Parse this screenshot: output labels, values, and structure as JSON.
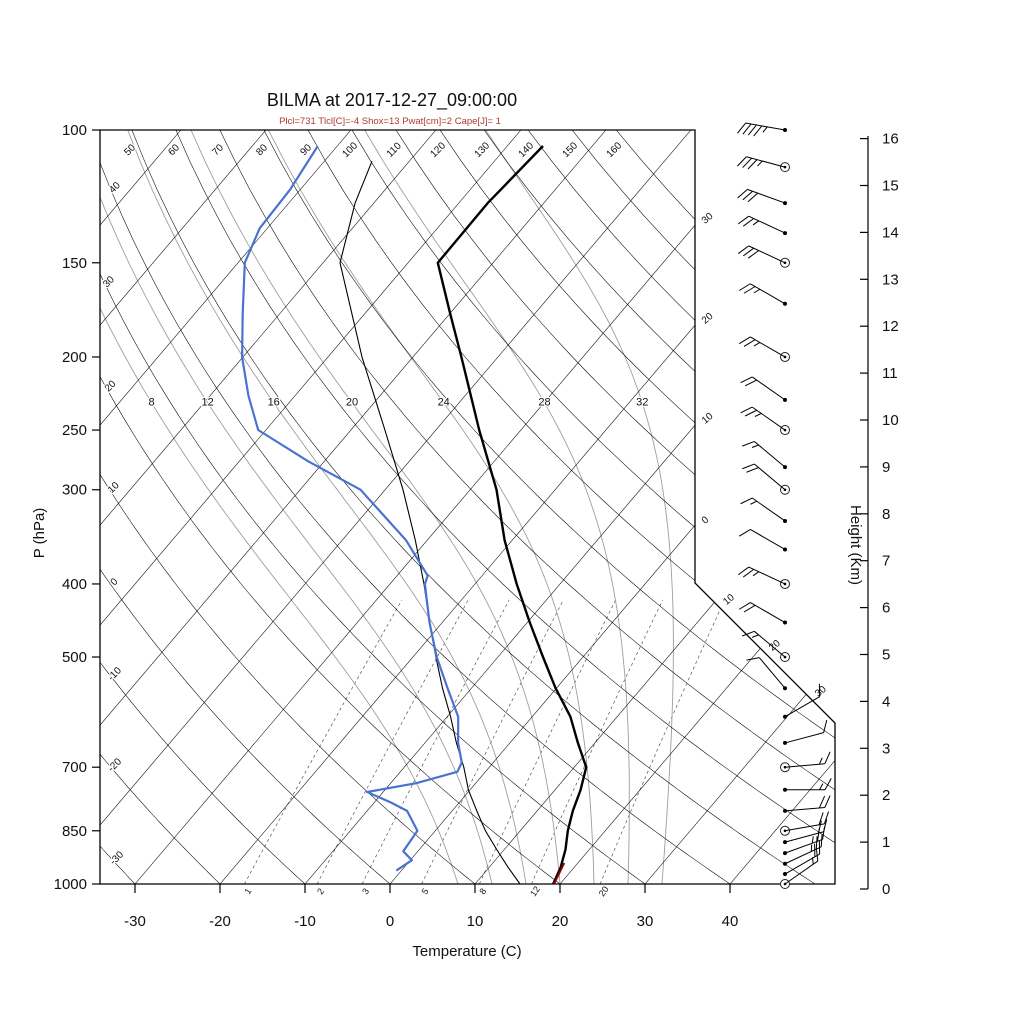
{
  "header": {
    "title": "BILMA at 2017-12-27_09:00:00",
    "params": "Plcl=731 Tlcl[C]=-4 Shox=13 Pwat[cm]=2 Cape[J]= 1"
  },
  "axes": {
    "pressure_label": "P (hPa)",
    "temperature_label": "Temperature (C)",
    "height_label": "Height (Km)"
  },
  "chart_data": {
    "type": "skewt_log_p_sounding",
    "station": "BILMA",
    "datetime": "2017-12-27_09:00:00",
    "params": {
      "Plcl_hPa": 731,
      "Tlcl_C": -4,
      "Showalter": 13,
      "Pwat_cm": 2,
      "Cape_J": 1
    },
    "pressure_ticks": [
      100,
      150,
      200,
      250,
      300,
      400,
      500,
      700,
      850,
      1000
    ],
    "temperature_ticks": [
      -30,
      -20,
      -10,
      0,
      10,
      20,
      30,
      40
    ],
    "height_ticks_km": [
      0,
      1,
      2,
      3,
      4,
      5,
      6,
      7,
      8,
      9,
      10,
      11,
      12,
      13,
      14,
      15,
      16
    ],
    "isotherms_c": {
      "start": -100,
      "end": 40,
      "step": 10
    },
    "dry_adiabats_c": {
      "start": -30,
      "end": 160,
      "step": 10
    },
    "dry_adiabat_top_labels": [
      50,
      60,
      70,
      80,
      90,
      100,
      110,
      120,
      130,
      140,
      150,
      160
    ],
    "dry_adiabat_left_labels": [
      40,
      30,
      20,
      10,
      0,
      -10,
      -20,
      -30
    ],
    "moist_adiabats_c": [
      8,
      12,
      16,
      20,
      24,
      28,
      32
    ],
    "mixing_ratio_g_kg": [
      1,
      2,
      3,
      5,
      8,
      12,
      20
    ],
    "isotherm_edge_labels_upper": [
      {
        "t": -30,
        "text": "30"
      },
      {
        "t": -20,
        "text": "20"
      },
      {
        "t": -10,
        "text": "10"
      },
      {
        "t": 0,
        "text": "0"
      }
    ],
    "isotherm_edge_labels_lower": [
      {
        "t": 10,
        "text": "10"
      },
      {
        "t": 20,
        "text": "20"
      },
      {
        "t": 30,
        "text": "30"
      }
    ],
    "temperature_profile": [
      [
        1000,
        19.2
      ],
      [
        950,
        18.4
      ],
      [
        900,
        17.2
      ],
      [
        850,
        15.6
      ],
      [
        800,
        14.2
      ],
      [
        750,
        13.0
      ],
      [
        700,
        11.4
      ],
      [
        650,
        8.0
      ],
      [
        600,
        4.5
      ],
      [
        550,
        -0.1
      ],
      [
        500,
        -4.7
      ],
      [
        450,
        -9.7
      ],
      [
        400,
        -15.1
      ],
      [
        350,
        -20.9
      ],
      [
        300,
        -26.9
      ],
      [
        250,
        -34.9
      ],
      [
        200,
        -44.3
      ],
      [
        175,
        -50.0
      ],
      [
        150,
        -56.5
      ],
      [
        125,
        -56.6
      ],
      [
        105,
        -55.8
      ]
    ],
    "dewpoint_profile": [
      [
        960,
        -0.6
      ],
      [
        930,
        0.2
      ],
      [
        905,
        -1.7
      ],
      [
        850,
        -2.1
      ],
      [
        800,
        -5.3
      ],
      [
        780,
        -8.0
      ],
      [
        755,
        -11.9
      ],
      [
        735,
        -7.0
      ],
      [
        710,
        -3.3
      ],
      [
        690,
        -3.7
      ],
      [
        650,
        -6.1
      ],
      [
        600,
        -8.7
      ],
      [
        550,
        -12.8
      ],
      [
        500,
        -17.2
      ],
      [
        450,
        -21.5
      ],
      [
        400,
        -25.9
      ],
      [
        390,
        -26.4
      ],
      [
        350,
        -32.5
      ],
      [
        300,
        -42.9
      ],
      [
        275,
        -51.9
      ],
      [
        250,
        -60.9
      ],
      [
        225,
        -65.5
      ],
      [
        200,
        -70.1
      ],
      [
        175,
        -74.4
      ],
      [
        150,
        -79.2
      ],
      [
        135,
        -80.9
      ],
      [
        120,
        -81.2
      ],
      [
        105,
        -82.3
      ]
    ],
    "parcel_profile": [
      [
        1000,
        15.3
      ],
      [
        950,
        12.2
      ],
      [
        900,
        9.1
      ],
      [
        850,
        5.9
      ],
      [
        800,
        2.9
      ],
      [
        750,
        -0.2
      ],
      [
        700,
        -3.0
      ],
      [
        650,
        -6.3
      ],
      [
        600,
        -9.6
      ],
      [
        550,
        -13.4
      ],
      [
        500,
        -17.3
      ],
      [
        450,
        -21.5
      ],
      [
        400,
        -26.0
      ],
      [
        350,
        -31.4
      ],
      [
        300,
        -37.9
      ],
      [
        250,
        -46.0
      ],
      [
        200,
        -56.0
      ],
      [
        150,
        -68.0
      ],
      [
        125,
        -72.2
      ],
      [
        110,
        -74.4
      ]
    ],
    "parcel_surface_segment": [
      [
        1000,
        19.3
      ],
      [
        938,
        18.4
      ]
    ],
    "wind_levels": [
      {
        "p": 100,
        "spd": 45,
        "dir": 280,
        "circle": false
      },
      {
        "p": 112,
        "spd": 35,
        "dir": 285,
        "circle": true
      },
      {
        "p": 125,
        "spd": 30,
        "dir": 290,
        "circle": false
      },
      {
        "p": 137,
        "spd": 25,
        "dir": 295,
        "circle": false
      },
      {
        "p": 150,
        "spd": 30,
        "dir": 295,
        "circle": true
      },
      {
        "p": 170,
        "spd": 25,
        "dir": 300,
        "circle": false
      },
      {
        "p": 200,
        "spd": 25,
        "dir": 300,
        "circle": true
      },
      {
        "p": 228,
        "spd": 20,
        "dir": 305,
        "circle": false
      },
      {
        "p": 250,
        "spd": 25,
        "dir": 305,
        "circle": true
      },
      {
        "p": 280,
        "spd": 15,
        "dir": 310,
        "circle": false
      },
      {
        "p": 300,
        "spd": 20,
        "dir": 310,
        "circle": true
      },
      {
        "p": 330,
        "spd": 15,
        "dir": 305,
        "circle": false
      },
      {
        "p": 360,
        "spd": 10,
        "dir": 300,
        "circle": false
      },
      {
        "p": 400,
        "spd": 25,
        "dir": 295,
        "circle": true
      },
      {
        "p": 450,
        "spd": 20,
        "dir": 300,
        "circle": false
      },
      {
        "p": 500,
        "spd": 15,
        "dir": 310,
        "circle": true
      },
      {
        "p": 550,
        "spd": 10,
        "dir": 320,
        "circle": false
      },
      {
        "p": 600,
        "spd": 8,
        "dir": 60,
        "circle": false
      },
      {
        "p": 650,
        "spd": 12,
        "dir": 75,
        "circle": false
      },
      {
        "p": 700,
        "spd": 15,
        "dir": 85,
        "circle": true
      },
      {
        "p": 750,
        "spd": 15,
        "dir": 90,
        "circle": false
      },
      {
        "p": 800,
        "spd": 18,
        "dir": 85,
        "circle": false
      },
      {
        "p": 850,
        "spd": 20,
        "dir": 80,
        "circle": true
      },
      {
        "p": 880,
        "spd": 22,
        "dir": 75,
        "circle": false
      },
      {
        "p": 910,
        "spd": 25,
        "dir": 70,
        "circle": false
      },
      {
        "p": 940,
        "spd": 25,
        "dir": 65,
        "circle": false
      },
      {
        "p": 970,
        "spd": 20,
        "dir": 60,
        "circle": false
      },
      {
        "p": 1000,
        "spd": 15,
        "dir": 55,
        "circle": true
      }
    ],
    "colors": {
      "temperature": "#000000",
      "dewpoint": "#4a72cf",
      "parcel": "#000000",
      "parcel_surface": "#8b0000",
      "params_text": "#b03a2e",
      "moist_adiabat": "#9e9e9e",
      "mixing_ratio": "#555555",
      "isopleth": "#000000"
    }
  }
}
